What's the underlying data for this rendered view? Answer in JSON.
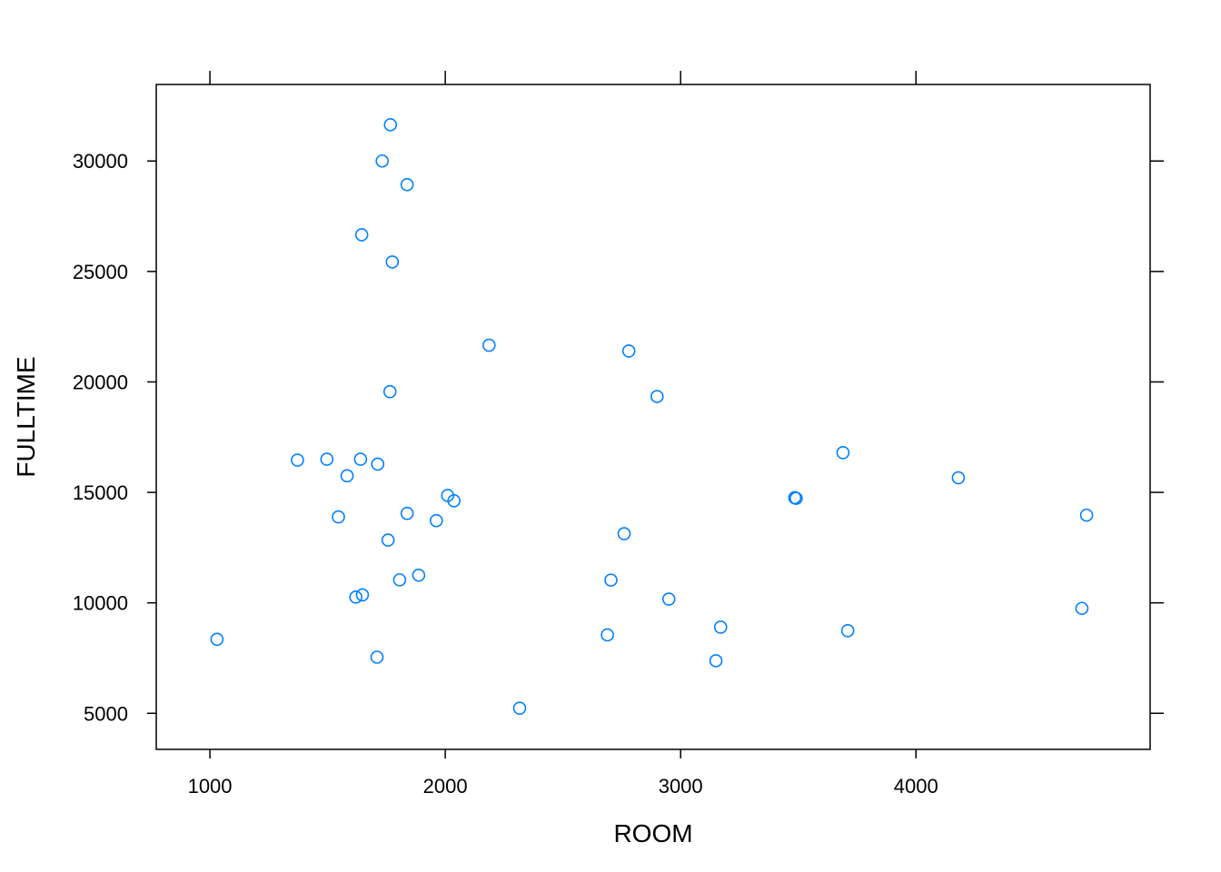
{
  "chart_data": {
    "type": "scatter",
    "title": "",
    "xlabel": "ROOM",
    "ylabel": "FULLTIME",
    "xlim": [
      772,
      4995
    ],
    "ylim": [
      3367,
      33464
    ],
    "x_ticks": [
      1000,
      2000,
      3000,
      4000
    ],
    "y_ticks": [
      5000,
      10000,
      15000,
      20000,
      25000,
      30000
    ],
    "x_tick_labels": [
      "1000",
      "2000",
      "3000",
      "4000"
    ],
    "y_tick_labels": [
      "5000",
      "10000",
      "15000",
      "20000",
      "25000",
      "30000"
    ],
    "grid": false,
    "legend": "none",
    "marker": "open-circle",
    "point_color": "#0080ff",
    "series": [
      {
        "points": [
          [
            1030,
            8350
          ],
          [
            1372,
            16460
          ],
          [
            1497,
            16500
          ],
          [
            1546,
            13890
          ],
          [
            1583,
            15750
          ],
          [
            1620,
            10260
          ],
          [
            1640,
            16500
          ],
          [
            1645,
            26660
          ],
          [
            1648,
            10360
          ],
          [
            1710,
            7540
          ],
          [
            1713,
            16280
          ],
          [
            1732,
            30000
          ],
          [
            1757,
            12840
          ],
          [
            1765,
            19560
          ],
          [
            1767,
            31640
          ],
          [
            1775,
            25430
          ],
          [
            1806,
            11040
          ],
          [
            1838,
            28930
          ],
          [
            1838,
            14050
          ],
          [
            1887,
            11250
          ],
          [
            1962,
            13720
          ],
          [
            2010,
            14860
          ],
          [
            2037,
            14620
          ],
          [
            2186,
            21660
          ],
          [
            2316,
            5230
          ],
          [
            2689,
            8550
          ],
          [
            2704,
            11030
          ],
          [
            2760,
            13130
          ],
          [
            2780,
            21400
          ],
          [
            2900,
            19340
          ],
          [
            2950,
            10170
          ],
          [
            3150,
            7380
          ],
          [
            3170,
            8900
          ],
          [
            3485,
            14760
          ],
          [
            3491,
            14730
          ],
          [
            3690,
            16800
          ],
          [
            3710,
            8740
          ],
          [
            4180,
            15660
          ],
          [
            4705,
            9750
          ],
          [
            4725,
            13970
          ]
        ]
      }
    ]
  }
}
